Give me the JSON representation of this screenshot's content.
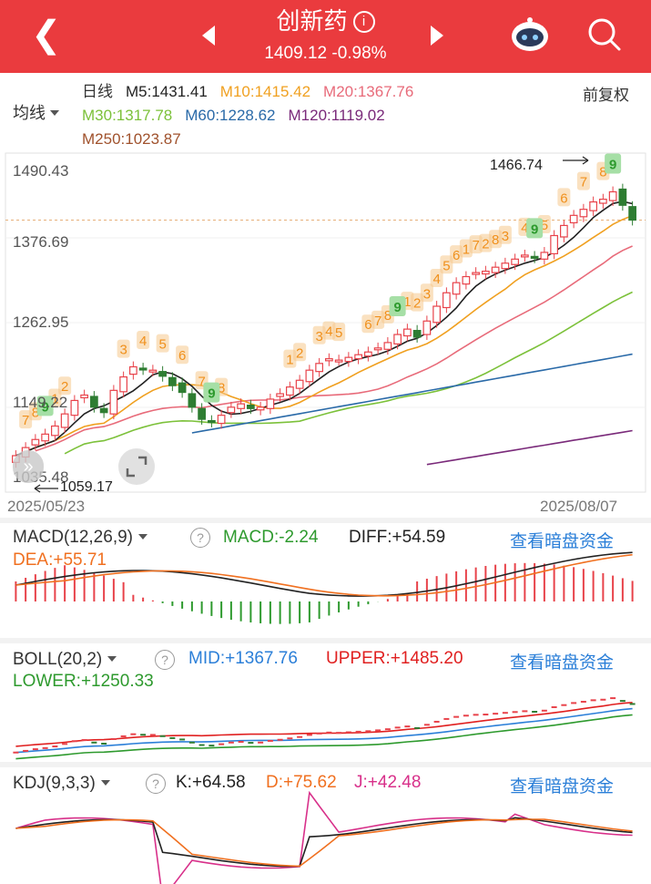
{
  "header": {
    "back_icon": "chevron-left-icon",
    "title": "创新药",
    "info_icon": "i",
    "subtitle": "1409.12 -0.98%",
    "prev_icon": "triangle-left-icon",
    "next_icon": "triangle-right-icon",
    "robot_icon": "robot-icon",
    "search_icon": "search-icon",
    "bg": "#ea3b3e"
  },
  "ma_selector": "均线",
  "ma_period": "日线",
  "ma": [
    {
      "text": "M5:1431.41",
      "color": "#222222"
    },
    {
      "text": "M10:1415.42",
      "color": "#f0a020"
    },
    {
      "text": "M20:1367.76",
      "color": "#e86b7a"
    },
    {
      "text": "M30:1317.78",
      "color": "#7cc13a"
    },
    {
      "text": "M60:1228.62",
      "color": "#2a6aa8"
    },
    {
      "text": "M120:1119.02",
      "color": "#7a2a7a"
    },
    {
      "text": "M250:1023.87",
      "color": "#a0522d"
    }
  ],
  "adjust": "前复权",
  "y_labels": [
    "1490.43",
    "1376.69",
    "1262.95",
    "1149.22",
    "1035.48"
  ],
  "high_label": "1466.74",
  "low_label": "1059.17",
  "dates": {
    "start": "2025/05/23",
    "end": "2025/08/07"
  },
  "chart_data": {
    "type": "candlestick",
    "ylim": [
      1035.48,
      1490.43
    ],
    "closes": [
      1068,
      1080,
      1092,
      1100,
      1112,
      1130,
      1150,
      1158,
      1140,
      1132,
      1165,
      1185,
      1200,
      1196,
      1195,
      1186,
      1172,
      1162,
      1140,
      1122,
      1118,
      1128,
      1140,
      1145,
      1138,
      1140,
      1152,
      1160,
      1170,
      1180,
      1195,
      1205,
      1212,
      1210,
      1214,
      1218,
      1222,
      1228,
      1236,
      1248,
      1256,
      1244,
      1268,
      1290,
      1310,
      1325,
      1334,
      1340,
      1342,
      1348,
      1354,
      1360,
      1366,
      1362,
      1370,
      1395,
      1410,
      1425,
      1434,
      1445,
      1449,
      1460,
      1440,
      1418
    ],
    "td_up": [
      {
        "i": 1,
        "n": 7
      },
      {
        "i": 2,
        "n": 8
      },
      {
        "i": 4,
        "n": 1
      },
      {
        "i": 5,
        "n": 2
      },
      {
        "i": 11,
        "n": 3
      },
      {
        "i": 13,
        "n": 4
      },
      {
        "i": 15,
        "n": 5
      },
      {
        "i": 17,
        "n": 6
      },
      {
        "i": 19,
        "n": 7
      },
      {
        "i": 21,
        "n": 8
      },
      {
        "i": 46,
        "n": 1
      },
      {
        "i": 48,
        "n": 2
      },
      {
        "i": 50,
        "n": 3
      },
      {
        "i": 52,
        "n": 4
      },
      {
        "i": 54,
        "n": 5
      },
      {
        "i": 56,
        "n": 6
      },
      {
        "i": 58,
        "n": 7
      },
      {
        "i": 60,
        "n": 8
      },
      {
        "i": 28,
        "n": 1
      },
      {
        "i": 29,
        "n": 2
      },
      {
        "i": 31,
        "n": 3
      },
      {
        "i": 32,
        "n": 4
      },
      {
        "i": 33,
        "n": 5
      },
      {
        "i": 36,
        "n": 6
      },
      {
        "i": 37,
        "n": 7
      },
      {
        "i": 38,
        "n": 8
      },
      {
        "i": 40,
        "n": 1
      },
      {
        "i": 41,
        "n": 2
      },
      {
        "i": 42,
        "n": 3
      },
      {
        "i": 43,
        "n": 4
      },
      {
        "i": 44,
        "n": 5
      },
      {
        "i": 45,
        "n": 6
      },
      {
        "i": 47,
        "n": 7
      },
      {
        "i": 49,
        "n": 8
      }
    ],
    "td_nine": [
      3,
      20,
      39,
      53,
      61
    ],
    "macd": {
      "label": "MACD(12,26,9)",
      "macd": "MACD:-2.24",
      "diff": "DIFF:+54.59",
      "dea": "DEA:+55.71"
    },
    "boll": {
      "label": "BOLL(20,2)",
      "mid": "MID:+1367.76",
      "upper": "UPPER:+1485.20",
      "lower": "LOWER:+1250.33"
    },
    "kdj": {
      "label": "KDJ(9,3,3)",
      "k": "K:+64.58",
      "d": "D:+75.62",
      "j": "J:+42.48"
    }
  },
  "link_text": "查看暗盘资金"
}
